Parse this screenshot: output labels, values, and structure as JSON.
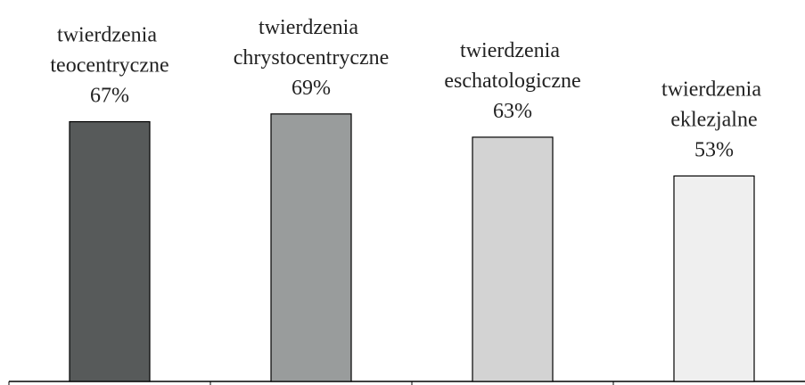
{
  "chart_data": {
    "type": "bar",
    "categories": [
      "twierdzenia teocentryczne",
      "twierdzenia chrystocentryczne",
      "twierdzenia eschatologiczne",
      "twierdzenia eklezjalne"
    ],
    "values": [
      67,
      69,
      63,
      53
    ],
    "value_labels": [
      "67%",
      "69%",
      "63%",
      "53%"
    ],
    "colors": [
      "#575a5a",
      "#999c9c",
      "#d3d3d3",
      "#efefef"
    ],
    "ylim": [
      0,
      100
    ]
  }
}
